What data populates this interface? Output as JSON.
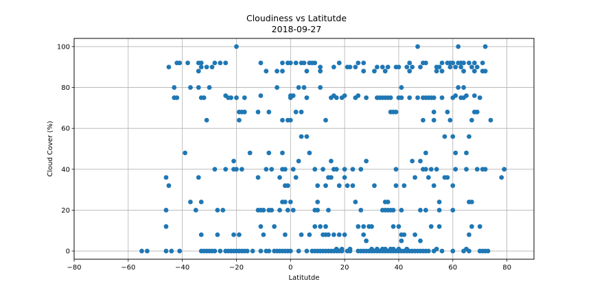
{
  "chart_data": {
    "type": "scatter",
    "title": "Cloudiness vs Latitutde",
    "subtitle": "2018-09-27",
    "xlabel": "Latitutde",
    "ylabel": "Cloud Cover (%)",
    "xlim": [
      -80,
      90
    ],
    "ylim": [
      -4,
      104
    ],
    "xticks": [
      -80,
      -60,
      -40,
      -20,
      0,
      20,
      40,
      60,
      80
    ],
    "yticks": [
      0,
      20,
      40,
      60,
      80,
      100
    ],
    "grid": true,
    "marker_color": "#1f77b4",
    "points": [
      [
        -55,
        0
      ],
      [
        -53,
        0
      ],
      [
        -46,
        36
      ],
      [
        -46,
        20
      ],
      [
        -46,
        12
      ],
      [
        -46,
        0
      ],
      [
        -45,
        90
      ],
      [
        -45,
        32
      ],
      [
        -44,
        0
      ],
      [
        -43,
        80
      ],
      [
        -43,
        75
      ],
      [
        -42,
        75
      ],
      [
        -42,
        92
      ],
      [
        -41,
        92
      ],
      [
        -41,
        0
      ],
      [
        -39,
        48
      ],
      [
        -38,
        92
      ],
      [
        -37,
        80
      ],
      [
        -37,
        24
      ],
      [
        -35,
        20
      ],
      [
        -34,
        92
      ],
      [
        -34,
        88
      ],
      [
        -34,
        80
      ],
      [
        -34,
        36
      ],
      [
        -33,
        92
      ],
      [
        -33,
        90
      ],
      [
        -33,
        75
      ],
      [
        -33,
        24
      ],
      [
        -33,
        8
      ],
      [
        -33,
        0
      ],
      [
        -32,
        75
      ],
      [
        -32,
        0
      ],
      [
        -31,
        90
      ],
      [
        -31,
        64
      ],
      [
        -31,
        0
      ],
      [
        -30,
        80
      ],
      [
        -30,
        0
      ],
      [
        -29,
        90
      ],
      [
        -29,
        0
      ],
      [
        -28,
        92
      ],
      [
        -28,
        40
      ],
      [
        -28,
        0
      ],
      [
        -27,
        20
      ],
      [
        -27,
        8
      ],
      [
        -26,
        92
      ],
      [
        -26,
        0
      ],
      [
        -25,
        20
      ],
      [
        -24,
        92
      ],
      [
        -24,
        76
      ],
      [
        -24,
        40
      ],
      [
        -24,
        0
      ],
      [
        -23,
        75
      ],
      [
        -23,
        0
      ],
      [
        -22,
        75
      ],
      [
        -22,
        0
      ],
      [
        -21,
        44
      ],
      [
        -21,
        40
      ],
      [
        -21,
        8
      ],
      [
        -21,
        0
      ],
      [
        -20,
        100
      ],
      [
        -20,
        75
      ],
      [
        -20,
        40
      ],
      [
        -20,
        0
      ],
      [
        -19,
        64
      ],
      [
        -19,
        68
      ],
      [
        -19,
        8
      ],
      [
        -19,
        0
      ],
      [
        -18,
        68
      ],
      [
        -18,
        40
      ],
      [
        -18,
        0
      ],
      [
        -17,
        75
      ],
      [
        -17,
        68
      ],
      [
        -17,
        0
      ],
      [
        -16,
        0
      ],
      [
        -15,
        48
      ],
      [
        -14,
        0
      ],
      [
        -12,
        68
      ],
      [
        -12,
        36
      ],
      [
        -12,
        20
      ],
      [
        -11,
        92
      ],
      [
        -11,
        76
      ],
      [
        -11,
        20
      ],
      [
        -11,
        12
      ],
      [
        -11,
        0
      ],
      [
        -10,
        20
      ],
      [
        -10,
        8
      ],
      [
        -9,
        88
      ],
      [
        -9,
        40
      ],
      [
        -9,
        0
      ],
      [
        -8,
        68
      ],
      [
        -8,
        48
      ],
      [
        -8,
        20
      ],
      [
        -8,
        0
      ],
      [
        -7,
        40
      ],
      [
        -7,
        20
      ],
      [
        -6,
        12
      ],
      [
        -6,
        0
      ],
      [
        -5,
        80
      ],
      [
        -5,
        88
      ],
      [
        -5,
        0
      ],
      [
        -4,
        36
      ],
      [
        -4,
        20
      ],
      [
        -4,
        0
      ],
      [
        -3,
        92
      ],
      [
        -3,
        88
      ],
      [
        -3,
        64
      ],
      [
        -3,
        48
      ],
      [
        -3,
        40
      ],
      [
        -3,
        24
      ],
      [
        -3,
        0
      ],
      [
        -2,
        40
      ],
      [
        -2,
        32
      ],
      [
        -2,
        24
      ],
      [
        -2,
        8
      ],
      [
        -2,
        0
      ],
      [
        -1,
        92
      ],
      [
        -1,
        64
      ],
      [
        -1,
        32
      ],
      [
        -1,
        20
      ],
      [
        -1,
        0
      ],
      [
        0,
        92
      ],
      [
        0,
        76
      ],
      [
        0,
        75
      ],
      [
        0,
        64
      ],
      [
        0,
        24
      ],
      [
        0,
        0
      ],
      [
        1,
        40
      ],
      [
        1,
        20
      ],
      [
        1,
        76
      ],
      [
        2,
        92
      ],
      [
        2,
        68
      ],
      [
        2,
        36
      ],
      [
        3,
        80
      ],
      [
        3,
        44
      ],
      [
        3,
        0
      ],
      [
        4,
        92
      ],
      [
        4,
        68
      ],
      [
        4,
        56
      ],
      [
        4,
        8
      ],
      [
        5,
        92
      ],
      [
        5,
        80
      ],
      [
        6,
        88
      ],
      [
        6,
        75
      ],
      [
        6,
        56
      ],
      [
        6,
        0
      ],
      [
        7,
        92
      ],
      [
        7,
        48
      ],
      [
        7,
        8
      ],
      [
        8,
        92
      ],
      [
        8,
        0
      ],
      [
        9,
        92
      ],
      [
        9,
        40
      ],
      [
        9,
        20
      ],
      [
        9,
        12
      ],
      [
        9,
        0
      ],
      [
        10,
        32
      ],
      [
        10,
        24
      ],
      [
        10,
        20
      ],
      [
        10,
        0
      ],
      [
        11,
        90
      ],
      [
        11,
        88
      ],
      [
        11,
        80
      ],
      [
        11,
        12
      ],
      [
        11,
        0
      ],
      [
        12,
        40
      ],
      [
        12,
        8
      ],
      [
        12,
        0
      ],
      [
        13,
        64
      ],
      [
        13,
        32
      ],
      [
        13,
        12
      ],
      [
        13,
        8
      ],
      [
        13,
        0
      ],
      [
        14,
        36
      ],
      [
        14,
        20
      ],
      [
        14,
        8
      ],
      [
        14,
        0
      ],
      [
        15,
        44
      ],
      [
        15,
        36
      ],
      [
        15,
        75
      ],
      [
        15,
        0
      ],
      [
        16,
        90
      ],
      [
        16,
        76
      ],
      [
        16,
        40
      ],
      [
        16,
        8
      ],
      [
        16,
        0
      ],
      [
        17,
        75
      ],
      [
        17,
        40
      ],
      [
        17,
        1
      ],
      [
        17,
        0
      ],
      [
        18,
        92
      ],
      [
        18,
        32
      ],
      [
        18,
        8
      ],
      [
        18,
        0
      ],
      [
        19,
        75
      ],
      [
        19,
        1
      ],
      [
        19,
        0
      ],
      [
        20,
        76
      ],
      [
        20,
        40
      ],
      [
        20,
        36
      ],
      [
        20,
        8
      ],
      [
        21,
        90
      ],
      [
        21,
        32
      ],
      [
        21,
        0
      ],
      [
        22,
        90
      ],
      [
        22,
        1
      ],
      [
        22,
        0
      ],
      [
        23,
        40
      ],
      [
        23,
        32
      ],
      [
        24,
        90
      ],
      [
        24,
        75
      ],
      [
        24,
        24
      ],
      [
        25,
        92
      ],
      [
        25,
        76
      ],
      [
        25,
        12
      ],
      [
        25,
        0
      ],
      [
        26,
        40
      ],
      [
        26,
        20
      ],
      [
        26,
        0
      ],
      [
        27,
        92
      ],
      [
        27,
        88
      ],
      [
        27,
        12
      ],
      [
        27,
        8
      ],
      [
        27,
        0
      ],
      [
        28,
        75
      ],
      [
        28,
        44
      ],
      [
        28,
        5
      ],
      [
        28,
        0
      ],
      [
        29,
        12
      ],
      [
        29,
        0
      ],
      [
        30,
        12
      ],
      [
        30,
        1
      ],
      [
        30,
        0
      ],
      [
        31,
        88
      ],
      [
        31,
        32
      ],
      [
        31,
        0
      ],
      [
        32,
        90
      ],
      [
        32,
        75
      ],
      [
        32,
        1
      ],
      [
        32,
        0
      ],
      [
        33,
        75
      ],
      [
        33,
        0
      ],
      [
        34,
        90
      ],
      [
        34,
        75
      ],
      [
        34,
        20
      ],
      [
        34,
        1
      ],
      [
        34,
        0
      ],
      [
        35,
        88
      ],
      [
        35,
        75
      ],
      [
        35,
        24
      ],
      [
        35,
        20
      ],
      [
        35,
        1
      ],
      [
        35,
        0
      ],
      [
        36,
        90
      ],
      [
        36,
        75
      ],
      [
        36,
        24
      ],
      [
        36,
        20
      ],
      [
        36,
        0
      ],
      [
        37,
        75
      ],
      [
        37,
        68
      ],
      [
        37,
        20
      ],
      [
        37,
        1
      ],
      [
        37,
        0
      ],
      [
        38,
        68
      ],
      [
        38,
        20
      ],
      [
        38,
        12
      ],
      [
        38,
        1
      ],
      [
        38,
        0
      ],
      [
        39,
        90
      ],
      [
        39,
        68
      ],
      [
        39,
        40
      ],
      [
        39,
        32
      ],
      [
        39,
        0
      ],
      [
        40,
        90
      ],
      [
        40,
        75
      ],
      [
        40,
        12
      ],
      [
        40,
        1
      ],
      [
        40,
        0
      ],
      [
        41,
        80
      ],
      [
        41,
        75
      ],
      [
        41,
        20
      ],
      [
        41,
        8
      ],
      [
        41,
        5
      ],
      [
        41,
        0
      ],
      [
        42,
        32
      ],
      [
        42,
        8
      ],
      [
        42,
        0
      ],
      [
        43,
        90
      ],
      [
        43,
        1
      ],
      [
        43,
        0
      ],
      [
        44,
        92
      ],
      [
        44,
        88
      ],
      [
        44,
        75
      ],
      [
        44,
        0
      ],
      [
        45,
        90
      ],
      [
        45,
        44
      ],
      [
        45,
        0
      ],
      [
        46,
        8
      ],
      [
        46,
        36
      ],
      [
        46,
        0
      ],
      [
        47,
        100
      ],
      [
        47,
        75
      ],
      [
        47,
        0
      ],
      [
        48,
        90
      ],
      [
        48,
        44
      ],
      [
        48,
        20
      ],
      [
        48,
        5
      ],
      [
        48,
        0
      ],
      [
        49,
        92
      ],
      [
        49,
        75
      ],
      [
        49,
        64
      ],
      [
        49,
        40
      ],
      [
        49,
        0
      ],
      [
        50,
        92
      ],
      [
        50,
        75
      ],
      [
        50,
        48
      ],
      [
        50,
        40
      ],
      [
        50,
        20
      ],
      [
        50,
        0
      ],
      [
        51,
        75
      ],
      [
        51,
        36
      ],
      [
        51,
        0
      ],
      [
        52,
        75
      ],
      [
        52,
        40
      ],
      [
        52,
        12
      ],
      [
        53,
        75
      ],
      [
        53,
        68
      ],
      [
        53,
        64
      ],
      [
        53,
        32
      ],
      [
        53,
        0
      ],
      [
        54,
        90
      ],
      [
        54,
        88
      ],
      [
        54,
        40
      ],
      [
        54,
        1
      ],
      [
        55,
        90
      ],
      [
        55,
        24
      ],
      [
        55,
        20
      ],
      [
        55,
        12
      ],
      [
        56,
        92
      ],
      [
        56,
        88
      ],
      [
        56,
        75
      ],
      [
        56,
        0
      ],
      [
        57,
        56
      ],
      [
        57,
        36
      ],
      [
        58,
        92
      ],
      [
        58,
        68
      ],
      [
        58,
        36
      ],
      [
        59,
        90
      ],
      [
        59,
        92
      ],
      [
        59,
        64
      ],
      [
        60,
        92
      ],
      [
        60,
        75
      ],
      [
        60,
        56
      ],
      [
        60,
        32
      ],
      [
        60,
        20
      ],
      [
        60,
        0
      ],
      [
        61,
        90
      ],
      [
        61,
        48
      ],
      [
        61,
        40
      ],
      [
        61,
        76
      ],
      [
        62,
        100
      ],
      [
        62,
        92
      ],
      [
        62,
        80
      ],
      [
        63,
        90
      ],
      [
        63,
        92
      ],
      [
        63,
        75
      ],
      [
        64,
        92
      ],
      [
        64,
        88
      ],
      [
        64,
        80
      ],
      [
        64,
        75
      ],
      [
        64,
        0
      ],
      [
        65,
        76
      ],
      [
        65,
        48
      ],
      [
        65,
        40
      ],
      [
        65,
        1
      ],
      [
        66,
        92
      ],
      [
        66,
        56
      ],
      [
        66,
        24
      ],
      [
        66,
        8
      ],
      [
        66,
        0
      ],
      [
        67,
        90
      ],
      [
        67,
        64
      ],
      [
        67,
        24
      ],
      [
        67,
        12
      ],
      [
        68,
        92
      ],
      [
        68,
        88
      ],
      [
        68,
        76
      ],
      [
        68,
        68
      ],
      [
        69,
        90
      ],
      [
        69,
        68
      ],
      [
        69,
        40
      ],
      [
        70,
        75
      ],
      [
        70,
        12
      ],
      [
        70,
        0
      ],
      [
        71,
        92
      ],
      [
        71,
        88
      ],
      [
        71,
        40
      ],
      [
        71,
        0
      ],
      [
        72,
        100
      ],
      [
        72,
        88
      ],
      [
        72,
        40
      ],
      [
        72,
        0
      ],
      [
        73,
        0
      ],
      [
        74,
        64
      ],
      [
        78,
        36
      ],
      [
        79,
        40
      ]
    ]
  }
}
